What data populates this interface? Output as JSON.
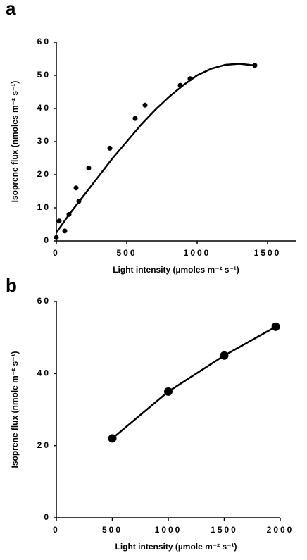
{
  "chart_data": [
    {
      "type": "scatter",
      "panel": "a",
      "x": [
        0,
        20,
        60,
        90,
        140,
        160,
        230,
        380,
        560,
        630,
        880,
        950,
        1410
      ],
      "y": [
        1,
        6,
        3,
        8,
        16,
        12,
        22,
        28,
        37,
        41,
        47,
        49,
        53
      ],
      "fit": {
        "x": [
          0,
          100,
          200,
          300,
          400,
          500,
          600,
          700,
          800,
          900,
          1000,
          1100,
          1200,
          1300,
          1410
        ],
        "y": [
          2.5,
          8.5,
          14,
          19.5,
          25,
          30,
          35,
          39.5,
          43.5,
          47,
          50,
          52,
          53.2,
          53.5,
          53
        ]
      },
      "color": "#000000",
      "xlabel": "Light intensity (µmoles m⁻² s⁻¹)",
      "ylabel": "Isoprene flux (nmoles m⁻² s⁻¹)",
      "xlim": [
        0,
        1700
      ],
      "xticks": [
        0,
        500,
        1000,
        1500
      ],
      "ylim": [
        0,
        60
      ],
      "yticks": [
        0,
        10,
        20,
        30,
        40,
        50,
        60
      ]
    },
    {
      "type": "line",
      "panel": "b",
      "x": [
        500,
        1000,
        1500,
        1960
      ],
      "y": [
        22,
        35,
        45,
        53
      ],
      "color": "#000000",
      "xlabel": "Light intensity (µmole m⁻² s⁻¹)",
      "ylabel": "Isoprene flux (nmole m⁻² s⁻¹)",
      "xlim": [
        0,
        2000
      ],
      "xticks": [
        0,
        500,
        1000,
        1500,
        2000
      ],
      "ylim": [
        0,
        60
      ],
      "yticks": [
        0,
        20,
        40,
        60
      ]
    }
  ]
}
